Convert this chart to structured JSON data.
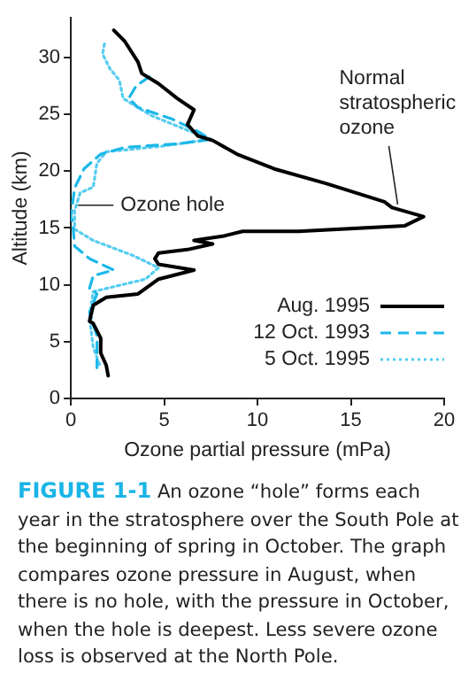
{
  "chart_data": {
    "type": "line",
    "xlabel": "Ozone partial pressure (mPa)",
    "ylabel": "Altitude (km)",
    "xlim": [
      0,
      20
    ],
    "xticks": [
      0,
      5,
      10,
      15,
      20
    ],
    "ylim": [
      0,
      33.5
    ],
    "yticks": [
      0,
      5,
      10,
      15,
      20,
      25,
      30
    ],
    "grid": false,
    "legend": "bottom right",
    "marker": "none",
    "series": [
      {
        "name": "Aug. 1995",
        "color": "#000000",
        "line_style": "solid",
        "x": [
          2.3,
          2.9,
          3.6,
          3.8,
          4.7,
          5.7,
          6.6,
          6.25,
          6.8,
          7.6,
          8.9,
          10.9,
          13.7,
          16.8,
          17.2,
          18.9,
          17.9,
          12.2,
          9.2,
          8.2,
          6.6,
          7.6,
          6.25,
          4.7,
          4.5,
          4.7,
          6.6,
          4.7,
          3.6,
          1.9,
          1.2,
          1.0,
          1.2,
          1.6,
          1.6,
          1.9,
          2.0
        ],
        "values": [
          32.4,
          31.4,
          29.6,
          28.6,
          27.7,
          26.4,
          25.4,
          24.1,
          23.1,
          22.7,
          21.5,
          20.2,
          18.9,
          17.3,
          16.8,
          16.0,
          15.2,
          14.7,
          14.7,
          14.3,
          13.9,
          13.6,
          13.1,
          12.8,
          12.3,
          11.8,
          11.3,
          10.5,
          9.2,
          8.9,
          8.2,
          6.8,
          6.6,
          5.3,
          4.0,
          2.9,
          2.0
        ]
      },
      {
        "name": "12 Oct. 1993",
        "color": "#1cb8ea",
        "line_style": "dashed",
        "x": [
          4.2,
          3.5,
          3.1,
          3.6,
          5.4,
          6.8,
          7.5,
          5.7,
          2.9,
          1.6,
          0.7,
          0.2,
          0.0,
          0.1,
          0.2,
          1.0,
          2.3,
          1.2,
          1.0,
          1.4,
          1.0,
          1.4,
          1.4,
          1.4
        ],
        "values": [
          28.3,
          27.5,
          26.4,
          25.6,
          24.6,
          23.5,
          22.8,
          22.4,
          22.1,
          21.5,
          20.2,
          18.5,
          16.0,
          15.5,
          13.4,
          12.3,
          11.3,
          10.8,
          9.7,
          9.2,
          7.6,
          5.5,
          4.0,
          2.7
        ]
      },
      {
        "name": "5 Oct. 1995",
        "color": "#55ccf0",
        "line_style": "dotted",
        "x": [
          1.8,
          1.7,
          2.1,
          2.6,
          2.8,
          4.3,
          6.4,
          7.5,
          4.9,
          1.9,
          1.4,
          1.2,
          0.5,
          0.2,
          0.2,
          1.2,
          3.3,
          4.7,
          4.0,
          1.2,
          1.0,
          1.2,
          1.6
        ],
        "values": [
          31.2,
          30.3,
          29.0,
          28.0,
          26.4,
          24.9,
          23.5,
          22.8,
          22.2,
          21.7,
          20.7,
          18.6,
          18.1,
          16.5,
          14.9,
          13.9,
          12.6,
          11.5,
          10.5,
          9.4,
          7.1,
          4.5,
          2.7
        ]
      }
    ],
    "annotations": [
      {
        "text": "Normal stratospheric ozone",
        "x": 17.7,
        "y": 16.6
      },
      {
        "text": "Ozone hole",
        "x": 0.2,
        "y": 17
      },
      "FIGURE 1-1",
      "An ozone “hole” forms each year in the stratosphere over the South Pole at the beginning of spring in October. The graph compares ozone pressure in August, when there is no hole, with the pressure in October, when the hole is deepest. Less severe ozone loss is observed at the North Pole."
    ]
  }
}
